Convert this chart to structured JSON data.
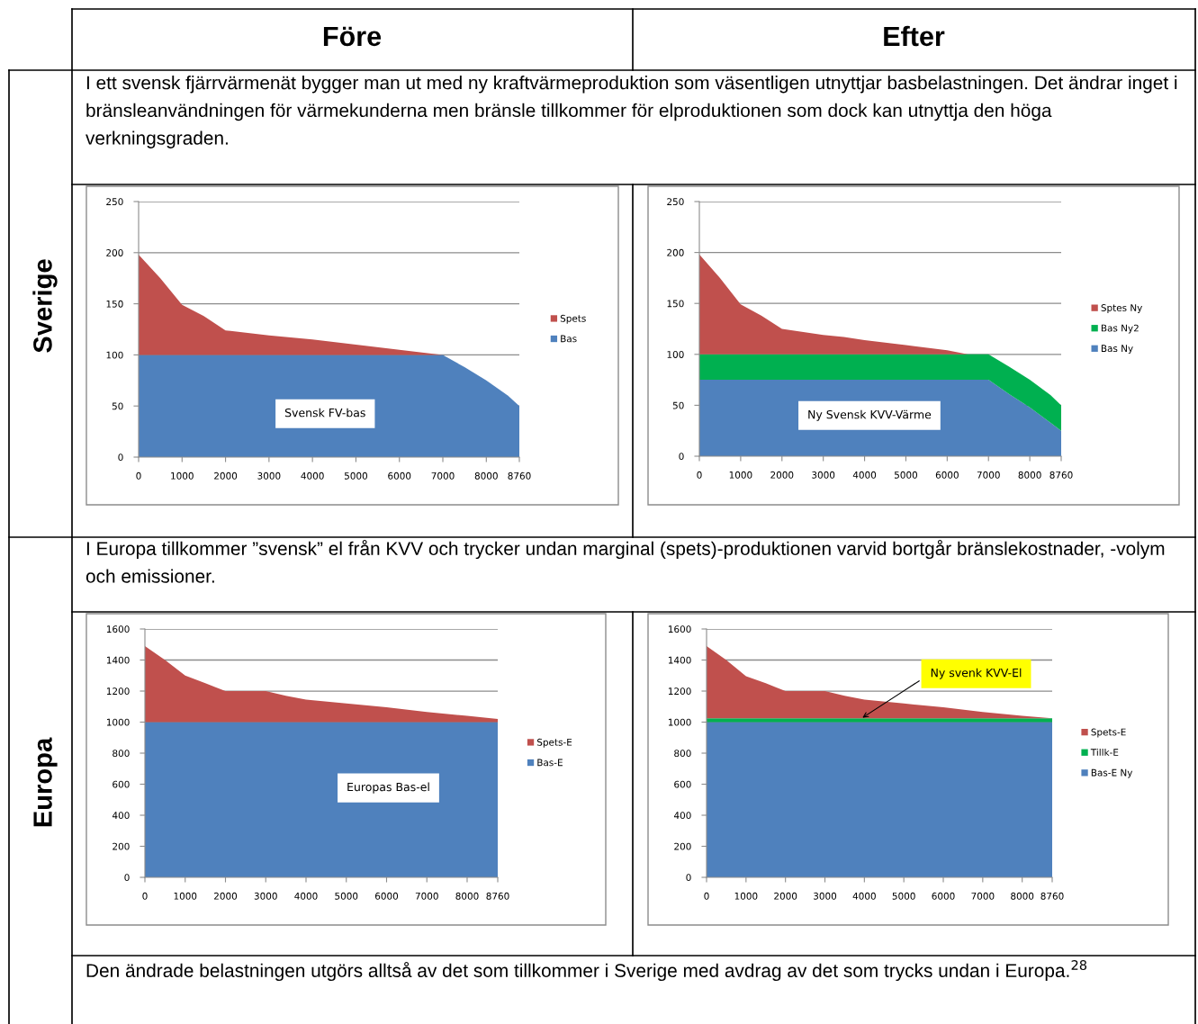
{
  "chart_data": [
    {
      "type": "other",
      "annotations": [
        "Före",
        "Efter",
        "Sverige",
        "I ett svensk fjärrvärmenät bygger man ut med ny kraftvärmeproduktion som väsentligen utnyttjar basbelastningen. Det ändrar inget i bränsleanvändningen för värmekunderna men bränsle tillkommer för elproduktionen som dock kan utnyttja den höga verkningsgraden.",
        "Europa",
        "I Europa tillkommer ”svensk” el från KVV och trycker undan marginal (spets)-produktionen varvid bortgår bränslekostnader, -volym och emissioner.",
        "Den ändrade belastningen utgörs alltså av det som tillkommer i Sverige med avdrag av det som trycks undan i Europa.$^{28}$"
      ]
    },
    {
      "type": "area",
      "stacked": true,
      "x": [
        0,
        500,
        1000,
        1500,
        2000,
        3000,
        3500,
        4000,
        5000,
        6000,
        7000,
        7500,
        8000,
        8500,
        8760
      ],
      "series": [
        {
          "name": "Bas",
          "color": "#4f81bd",
          "values": [
            100,
            100,
            100,
            100,
            100,
            100,
            100,
            100,
            100,
            100,
            100,
            88,
            75,
            60,
            50
          ]
        },
        {
          "name": "Spets",
          "color": "#c0504d",
          "values": [
            98,
            75,
            49,
            38,
            24,
            19,
            17,
            15,
            10,
            5,
            0,
            0,
            0,
            0,
            0
          ]
        }
      ],
      "xlim": [
        0,
        8760
      ],
      "xticks": [
        0,
        1000,
        2000,
        3000,
        4000,
        5000,
        6000,
        7000,
        8000,
        8760
      ],
      "ylim": [
        0,
        250
      ],
      "yticks": [
        0,
        50,
        100,
        150,
        200,
        250
      ],
      "grid": "y",
      "legend": "right",
      "annotations": [
        "Svensk FV-bas"
      ]
    },
    {
      "type": "area",
      "stacked": true,
      "x": [
        0,
        500,
        1000,
        1500,
        2000,
        3000,
        3500,
        4000,
        5000,
        6000,
        6500,
        7000,
        7500,
        8000,
        8500,
        8760
      ],
      "series": [
        {
          "name": "Bas Ny",
          "color": "#4f81bd",
          "values": [
            75,
            75,
            75,
            75,
            75,
            75,
            75,
            75,
            75,
            75,
            75,
            75,
            61,
            48,
            33,
            25
          ]
        },
        {
          "name": "Bas Ny2",
          "color": "#00b050",
          "values": [
            25,
            25,
            25,
            25,
            25,
            25,
            25,
            25,
            25,
            25,
            25,
            25,
            27,
            27,
            27,
            25
          ]
        },
        {
          "name": "Sptes Ny",
          "color": "#c0504d",
          "values": [
            98,
            75,
            49,
            38,
            25,
            19,
            17,
            14,
            9,
            4,
            0,
            0,
            0,
            0,
            0,
            0
          ]
        }
      ],
      "xlim": [
        0,
        8760
      ],
      "xticks": [
        0,
        1000,
        2000,
        3000,
        4000,
        5000,
        6000,
        7000,
        8000,
        8760
      ],
      "ylim": [
        0,
        250
      ],
      "yticks": [
        0,
        50,
        100,
        150,
        200,
        250
      ],
      "grid": "y",
      "legend": "right",
      "annotations": [
        "Ny Svensk KVV-Värme"
      ]
    },
    {
      "type": "area",
      "stacked": true,
      "x": [
        0,
        500,
        1000,
        1500,
        2000,
        3000,
        3500,
        4000,
        5000,
        6000,
        7000,
        8000,
        8760
      ],
      "series": [
        {
          "name": "Bas-E",
          "color": "#4f81bd",
          "values": [
            1000,
            1000,
            1000,
            1000,
            1000,
            1000,
            1000,
            1000,
            1000,
            1000,
            1000,
            1000,
            1000
          ]
        },
        {
          "name": "Spets-E",
          "color": "#c0504d",
          "values": [
            490,
            400,
            300,
            250,
            200,
            200,
            170,
            145,
            120,
            95,
            65,
            40,
            20
          ]
        }
      ],
      "xlim": [
        0,
        8760
      ],
      "xticks": [
        0,
        1000,
        2000,
        3000,
        4000,
        5000,
        6000,
        7000,
        8000,
        8760
      ],
      "ylim": [
        0,
        1600
      ],
      "yticks": [
        0,
        200,
        400,
        600,
        800,
        1000,
        1200,
        1400,
        1600
      ],
      "grid": "y",
      "legend": "right",
      "annotations": [
        "Europas Bas-el"
      ]
    },
    {
      "type": "area",
      "stacked": true,
      "x": [
        0,
        500,
        1000,
        1500,
        2000,
        3000,
        3500,
        4000,
        5000,
        6000,
        7000,
        8000,
        8760
      ],
      "series": [
        {
          "name": "Bas-E Ny",
          "color": "#4f81bd",
          "values": [
            1000,
            1000,
            1000,
            1000,
            1000,
            1000,
            1000,
            1000,
            1000,
            1000,
            1000,
            1000,
            1000
          ]
        },
        {
          "name": "Tillk-E",
          "color": "#00b050",
          "values": [
            25,
            25,
            25,
            25,
            25,
            25,
            25,
            25,
            25,
            25,
            25,
            25,
            25
          ]
        },
        {
          "name": "Spets-E",
          "color": "#c0504d",
          "values": [
            465,
            375,
            270,
            225,
            175,
            175,
            145,
            120,
            95,
            70,
            40,
            15,
            0
          ]
        }
      ],
      "xlim": [
        0,
        8760
      ],
      "xticks": [
        0,
        1000,
        2000,
        3000,
        4000,
        5000,
        6000,
        7000,
        8000,
        8760
      ],
      "ylim": [
        0,
        1600
      ],
      "yticks": [
        0,
        200,
        400,
        600,
        800,
        1000,
        1200,
        1400,
        1600
      ],
      "grid": "y",
      "legend": "right",
      "annotations": [
        {
          "text": "Ny svenk KVV-El",
          "x": 3900,
          "y": 1020
        }
      ]
    }
  ]
}
